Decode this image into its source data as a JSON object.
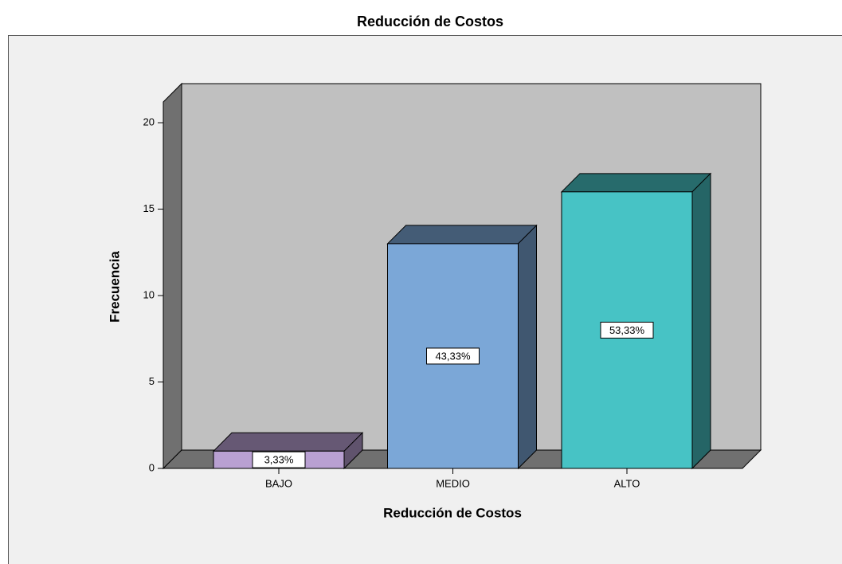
{
  "chart_data": {
    "type": "bar3d",
    "title": "Reducción de Costos",
    "x_label": "Reducción de Costos",
    "y_label": "Frecuencia",
    "categories": [
      "BAJO",
      "MEDIO",
      "ALTO"
    ],
    "values": [
      1,
      13,
      16
    ],
    "percent_labels": [
      "3,33%",
      "43,33%",
      "53,33%"
    ],
    "colors": [
      "#b9a0d2",
      "#7ba7d7",
      "#47c3c5"
    ],
    "ylim": [
      0,
      21.2
    ],
    "yticks": [
      0,
      5,
      10,
      15,
      20
    ],
    "grid": false
  }
}
